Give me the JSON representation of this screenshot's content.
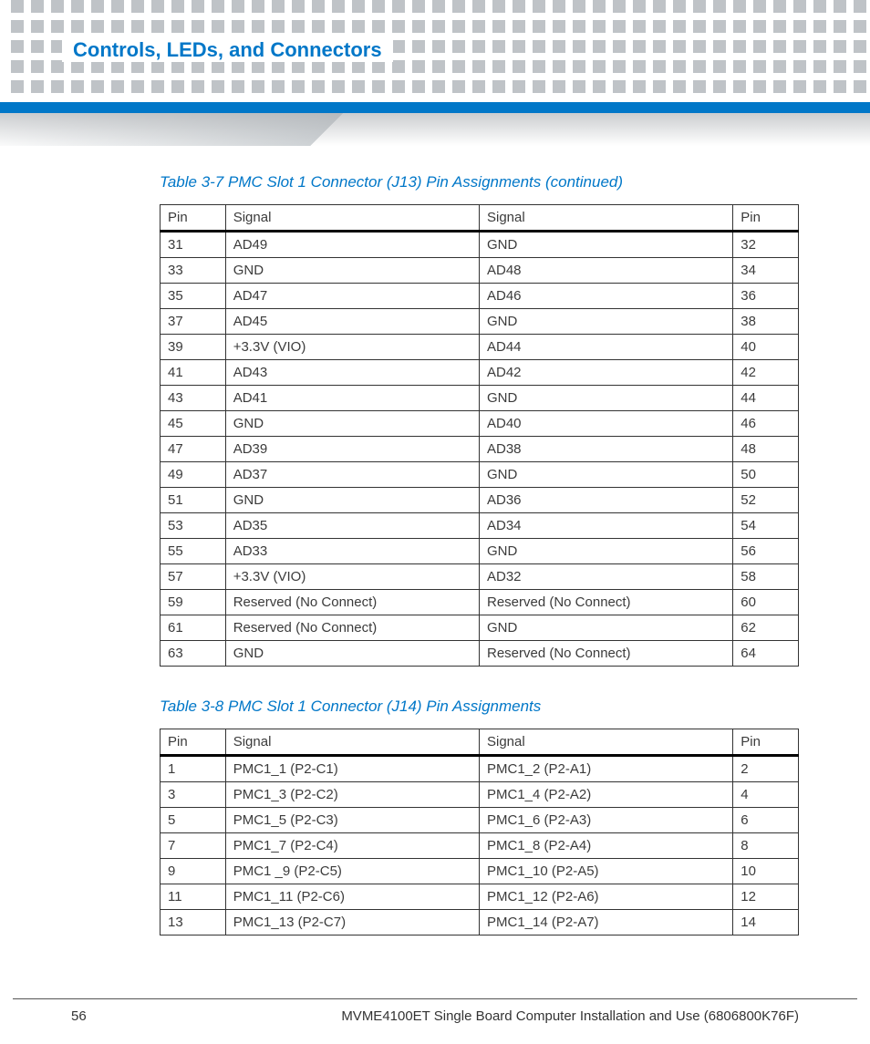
{
  "colors": {
    "brand_blue": "#0077c8",
    "dot_gray": "#bfc3c7",
    "text": "#333333",
    "border": "#333333"
  },
  "header": {
    "section_title": "Controls, LEDs, and Connectors"
  },
  "table1": {
    "title": "Table 3-7 PMC Slot 1 Connector (J13) Pin Assignments (continued)",
    "columns": [
      "Pin",
      "Signal",
      "Signal",
      "Pin"
    ],
    "rows": [
      [
        "31",
        "AD49",
        "GND",
        "32"
      ],
      [
        "33",
        "GND",
        "AD48",
        "34"
      ],
      [
        "35",
        "AD47",
        "AD46",
        "36"
      ],
      [
        "37",
        "AD45",
        "GND",
        "38"
      ],
      [
        "39",
        "+3.3V (VIO)",
        "AD44",
        "40"
      ],
      [
        "41",
        "AD43",
        "AD42",
        "42"
      ],
      [
        "43",
        "AD41",
        "GND",
        "44"
      ],
      [
        "45",
        "GND",
        "AD40",
        "46"
      ],
      [
        "47",
        "AD39",
        "AD38",
        "48"
      ],
      [
        "49",
        "AD37",
        "GND",
        "50"
      ],
      [
        "51",
        "GND",
        "AD36",
        "52"
      ],
      [
        "53",
        "AD35",
        "AD34",
        "54"
      ],
      [
        "55",
        "AD33",
        "GND",
        "56"
      ],
      [
        "57",
        "+3.3V (VIO)",
        "AD32",
        "58"
      ],
      [
        "59",
        "Reserved (No Connect)",
        "Reserved (No Connect)",
        "60"
      ],
      [
        "61",
        "Reserved (No Connect)",
        "GND",
        "62"
      ],
      [
        "63",
        "GND",
        "Reserved (No Connect)",
        "64"
      ]
    ]
  },
  "table2": {
    "title": "Table 3-8 PMC Slot 1 Connector (J14) Pin Assignments",
    "columns": [
      "Pin",
      "Signal",
      "Signal",
      "Pin"
    ],
    "rows": [
      [
        "1",
        "PMC1_1 (P2-C1)",
        "PMC1_2 (P2-A1)",
        "2"
      ],
      [
        "3",
        "PMC1_3 (P2-C2)",
        "PMC1_4 (P2-A2)",
        "4"
      ],
      [
        "5",
        "PMC1_5 (P2-C3)",
        "PMC1_6 (P2-A3)",
        "6"
      ],
      [
        "7",
        "PMC1_7 (P2-C4)",
        "PMC1_8 (P2-A4)",
        "8"
      ],
      [
        "9",
        "PMC1 _9 (P2-C5)",
        "PMC1_10 (P2-A5)",
        "10"
      ],
      [
        "11",
        "PMC1_11 (P2-C6)",
        "PMC1_12 (P2-A6)",
        "12"
      ],
      [
        "13",
        "PMC1_13 (P2-C7)",
        "PMC1_14 (P2-A7)",
        "14"
      ]
    ]
  },
  "footer": {
    "page_number": "56",
    "doc_title": "MVME4100ET Single Board Computer Installation and Use (6806800K76F)"
  }
}
